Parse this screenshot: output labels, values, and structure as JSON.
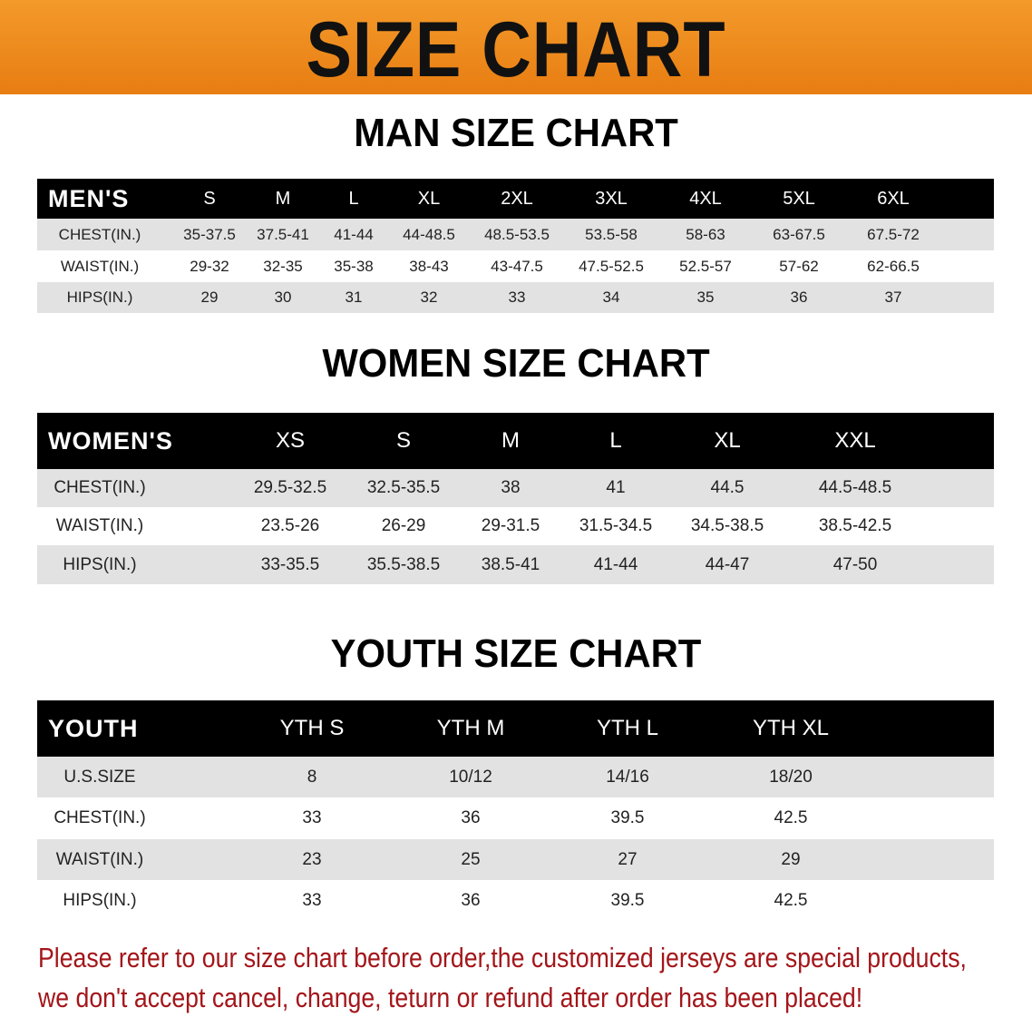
{
  "banner": {
    "title": "SIZE CHART",
    "color": "#ee8a1c"
  },
  "sections": [
    {
      "title": "MAN SIZE CHART",
      "header": [
        "MEN'S",
        "S",
        "M",
        "L",
        "XL",
        "2XL",
        "3XL",
        "4XL",
        "5XL",
        "6XL"
      ],
      "rows": [
        [
          "CHEST(IN.)",
          "35-37.5",
          "37.5-41",
          "41-44",
          "44-48.5",
          "48.5-53.5",
          "53.5-58",
          "58-63",
          "63-67.5",
          "67.5-72"
        ],
        [
          "WAIST(IN.)",
          "29-32",
          "32-35",
          "35-38",
          "38-43",
          "43-47.5",
          "47.5-52.5",
          "52.5-57",
          "57-62",
          "62-66.5"
        ],
        [
          "HIPS(IN.)",
          "29",
          "30",
          "31",
          "32",
          "33",
          "34",
          "35",
          "36",
          "37"
        ]
      ]
    },
    {
      "title": "WOMEN SIZE CHART",
      "header": [
        "WOMEN'S",
        "XS",
        "S",
        "M",
        "L",
        "XL",
        "XXL"
      ],
      "rows": [
        [
          "CHEST(IN.)",
          "29.5-32.5",
          "32.5-35.5",
          "38",
          "41",
          "44.5",
          "44.5-48.5"
        ],
        [
          "WAIST(IN.)",
          "23.5-26",
          "26-29",
          "29-31.5",
          "31.5-34.5",
          "34.5-38.5",
          "38.5-42.5"
        ],
        [
          "HIPS(IN.)",
          "33-35.5",
          "35.5-38.5",
          "38.5-41",
          "41-44",
          "44-47",
          "47-50"
        ]
      ]
    },
    {
      "title": "YOUTH SIZE CHART",
      "header": [
        "YOUTH",
        "YTH S",
        "YTH M",
        "YTH L",
        "YTH XL"
      ],
      "rows": [
        [
          "U.S.SIZE",
          "8",
          "10/12",
          "14/16",
          "18/20"
        ],
        [
          "CHEST(IN.)",
          "33",
          "36",
          "39.5",
          "42.5"
        ],
        [
          "WAIST(IN.)",
          "23",
          "25",
          "27",
          "29"
        ],
        [
          "HIPS(IN.)",
          "33",
          "36",
          "39.5",
          "42.5"
        ]
      ]
    }
  ],
  "note": {
    "lines": [
      "Please refer to our size chart before order,the customized jerseys are special products,",
      "we don't accept cancel, change, teturn or refund after order has been placed!"
    ],
    "color": "#a3161a"
  }
}
